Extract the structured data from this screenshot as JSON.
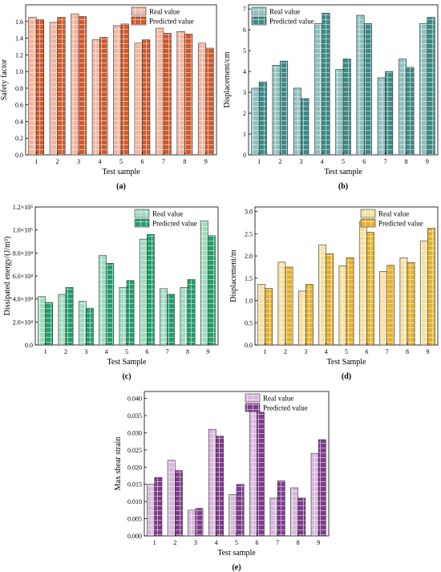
{
  "chart_data": [
    {
      "type": "bar",
      "panel_label": "(a)",
      "xlabel": "Test sample",
      "ylabel": "Safety factor",
      "categories": [
        "1",
        "2",
        "3",
        "4",
        "5",
        "6",
        "7",
        "8",
        "9"
      ],
      "ylim": [
        0,
        1.8
      ],
      "yticks": [
        "0.0",
        "0.2",
        "0.4",
        "0.6",
        "0.8",
        "1.0",
        "1.2",
        "1.4",
        "1.6"
      ],
      "legend_position": "top-right",
      "colors": [
        "#f2b6a0",
        "#d05a2c"
      ],
      "series": [
        {
          "name": "Real value",
          "values": [
            1.65,
            1.59,
            1.69,
            1.38,
            1.55,
            1.34,
            1.52,
            1.48,
            1.34
          ]
        },
        {
          "name": "Predicted value",
          "values": [
            1.62,
            1.65,
            1.66,
            1.41,
            1.57,
            1.38,
            1.46,
            1.45,
            1.28
          ]
        }
      ]
    },
    {
      "type": "bar",
      "panel_label": "(b)",
      "xlabel": "Test sample",
      "ylabel": "Displacement/cm",
      "categories": [
        "1",
        "2",
        "3",
        "4",
        "5",
        "6",
        "7",
        "8",
        "9"
      ],
      "ylim": [
        0,
        7.2
      ],
      "yticks": [
        "0",
        "1",
        "2",
        "3",
        "4",
        "5",
        "6",
        "7"
      ],
      "legend_position": "top-left",
      "colors": [
        "#8fc2bf",
        "#3b8a86"
      ],
      "series": [
        {
          "name": "Real value",
          "values": [
            3.2,
            4.3,
            3.2,
            6.3,
            4.1,
            6.7,
            3.7,
            4.6,
            6.3
          ]
        },
        {
          "name": "Predicted value",
          "values": [
            3.5,
            4.5,
            2.7,
            6.8,
            4.6,
            6.3,
            4.0,
            4.2,
            6.6
          ]
        }
      ]
    },
    {
      "type": "bar",
      "panel_label": "(c)",
      "xlabel": "Test Sample",
      "ylabel": "Dissipated energy/(J/m³)",
      "categories": [
        "1",
        "2",
        "3",
        "4",
        "5",
        "6",
        "7",
        "8",
        "9"
      ],
      "ylim": [
        0,
        120000
      ],
      "yticks": [
        "0.0",
        "2.0×10⁴",
        "4.0×10⁴",
        "6.0×10⁴",
        "8.0×10⁴",
        "1.0×10⁵",
        "1.2×10⁵"
      ],
      "legend_position": "top-right",
      "colors": [
        "#9fdcbf",
        "#1f9e6a"
      ],
      "series": [
        {
          "name": "Real value",
          "values": [
            42000,
            44000,
            38000,
            78000,
            50000,
            92000,
            49000,
            50000,
            108000
          ]
        },
        {
          "name": "Predicted value",
          "values": [
            37000,
            50000,
            32000,
            71000,
            56000,
            96000,
            44000,
            57000,
            95000
          ]
        }
      ]
    },
    {
      "type": "bar",
      "panel_label": "(d)",
      "xlabel": "Test Sample",
      "ylabel": "Displacement/m",
      "categories": [
        "1",
        "2",
        "3",
        "4",
        "5",
        "6",
        "7",
        "8",
        "9"
      ],
      "ylim": [
        0,
        3.1
      ],
      "yticks": [
        "0.0",
        "0.5",
        "1.0",
        "1.5",
        "2.0",
        "2.5",
        "3.0"
      ],
      "legend_position": "top-right",
      "colors": [
        "#f6dfa2",
        "#e4b12d"
      ],
      "series": [
        {
          "name": "Real value",
          "values": [
            1.36,
            1.86,
            1.21,
            2.25,
            1.78,
            2.77,
            1.65,
            1.96,
            2.34
          ]
        },
        {
          "name": "Predicted value",
          "values": [
            1.27,
            1.75,
            1.36,
            2.05,
            1.96,
            2.53,
            1.79,
            1.85,
            2.62
          ]
        }
      ]
    },
    {
      "type": "bar",
      "panel_label": "(e)",
      "xlabel": "Test sample",
      "ylabel": "Max shear strain",
      "categories": [
        "1",
        "2",
        "3",
        "4",
        "5",
        "6",
        "7",
        "8",
        "9"
      ],
      "ylim": [
        0,
        0.042
      ],
      "yticks": [
        "0.000",
        "0.005",
        "0.010",
        "0.015",
        "0.020",
        "0.025",
        "0.030",
        "0.035",
        "0.040"
      ],
      "legend_position": "top-right",
      "colors": [
        "#d8b8dc",
        "#7d3a8c"
      ],
      "series": [
        {
          "name": "Real value",
          "values": [
            0.015,
            0.022,
            0.0075,
            0.031,
            0.012,
            0.038,
            0.011,
            0.014,
            0.024
          ]
        },
        {
          "name": "Predicted value",
          "values": [
            0.017,
            0.019,
            0.008,
            0.029,
            0.015,
            0.036,
            0.016,
            0.011,
            0.028
          ]
        }
      ]
    }
  ]
}
